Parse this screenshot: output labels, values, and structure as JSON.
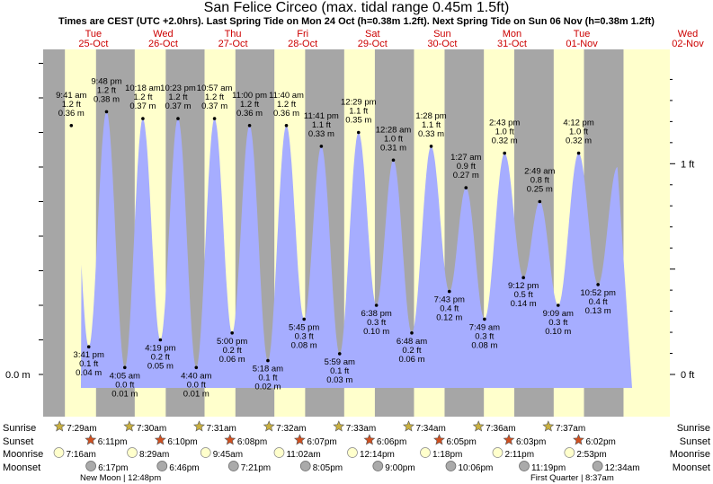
{
  "title": "San Felice Circeo (max. tidal range 0.45m 1.5ft)",
  "subtitle": "Times are CEST (UTC +2.0hrs). Last Spring Tide on Mon 24 Oct (h=0.38m 1.2ft). Next Spring Tide on Sun 06 Nov (h=0.38m 1.2ft)",
  "colors": {
    "night": "#a6a6a6",
    "day": "#ffffcc",
    "water": "#a6adff",
    "date_text": "#cc0000"
  },
  "chart_data": {
    "type": "area",
    "y_axis_left": {
      "unit": "m",
      "ticks": [
        {
          "value": 0.0,
          "label": "0.0 m"
        }
      ]
    },
    "y_axis_right": {
      "unit": "ft",
      "ticks": [
        {
          "value": 0,
          "label": "0 ft"
        },
        {
          "value": 1,
          "label": "1 ft"
        }
      ]
    },
    "days": [
      {
        "dow": "Tue",
        "date": "25-Oct"
      },
      {
        "dow": "Wed",
        "date": "26-Oct"
      },
      {
        "dow": "Thu",
        "date": "27-Oct"
      },
      {
        "dow": "Fri",
        "date": "28-Oct"
      },
      {
        "dow": "Sat",
        "date": "29-Oct"
      },
      {
        "dow": "Sun",
        "date": "30-Oct"
      },
      {
        "dow": "Mon",
        "date": "31-Oct"
      },
      {
        "dow": "Tue",
        "date": "01-Nov"
      },
      {
        "dow": "Wed",
        "date": "02-Nov"
      }
    ],
    "tides": [
      {
        "day": 0,
        "time": "9:41 am",
        "m": 0.36,
        "ft": "1.2 ft",
        "m_label": "0.36 m",
        "type": "high"
      },
      {
        "day": 0,
        "time": "3:41 pm",
        "m": 0.04,
        "ft": "0.1 ft",
        "m_label": "0.04 m",
        "type": "low"
      },
      {
        "day": 0,
        "time": "9:48 pm",
        "m": 0.38,
        "ft": "1.2 ft",
        "m_label": "0.38 m",
        "type": "high"
      },
      {
        "day": 1,
        "time": "4:05 am",
        "m": 0.01,
        "ft": "0.0 ft",
        "m_label": "0.01 m",
        "type": "low"
      },
      {
        "day": 1,
        "time": "10:18 am",
        "m": 0.37,
        "ft": "1.2 ft",
        "m_label": "0.37 m",
        "type": "high"
      },
      {
        "day": 1,
        "time": "4:19 pm",
        "m": 0.05,
        "ft": "0.2 ft",
        "m_label": "0.05 m",
        "type": "low"
      },
      {
        "day": 1,
        "time": "10:23 pm",
        "m": 0.37,
        "ft": "1.2 ft",
        "m_label": "0.37 m",
        "type": "high"
      },
      {
        "day": 2,
        "time": "4:40 am",
        "m": 0.01,
        "ft": "0.0 ft",
        "m_label": "0.01 m",
        "type": "low"
      },
      {
        "day": 2,
        "time": "10:57 am",
        "m": 0.37,
        "ft": "1.2 ft",
        "m_label": "0.37 m",
        "type": "high"
      },
      {
        "day": 2,
        "time": "5:00 pm",
        "m": 0.06,
        "ft": "0.2 ft",
        "m_label": "0.06 m",
        "type": "low"
      },
      {
        "day": 2,
        "time": "11:00 pm",
        "m": 0.36,
        "ft": "1.2 ft",
        "m_label": "0.36 m",
        "type": "high"
      },
      {
        "day": 3,
        "time": "5:18 am",
        "m": 0.02,
        "ft": "0.1 ft",
        "m_label": "0.02 m",
        "type": "low"
      },
      {
        "day": 3,
        "time": "11:40 am",
        "m": 0.36,
        "ft": "1.2 ft",
        "m_label": "0.36 m",
        "type": "high"
      },
      {
        "day": 3,
        "time": "5:45 pm",
        "m": 0.08,
        "ft": "0.3 ft",
        "m_label": "0.08 m",
        "type": "low"
      },
      {
        "day": 3,
        "time": "11:41 pm",
        "m": 0.33,
        "ft": "1.1 ft",
        "m_label": "0.33 m",
        "type": "high"
      },
      {
        "day": 4,
        "time": "5:59 am",
        "m": 0.03,
        "ft": "0.1 ft",
        "m_label": "0.03 m",
        "type": "low"
      },
      {
        "day": 4,
        "time": "12:29 pm",
        "m": 0.35,
        "ft": "1.1 ft",
        "m_label": "0.35 m",
        "type": "high"
      },
      {
        "day": 4,
        "time": "6:38 pm",
        "m": 0.1,
        "ft": "0.3 ft",
        "m_label": "0.10 m",
        "type": "low"
      },
      {
        "day": 5,
        "time": "12:28 am",
        "m": 0.31,
        "ft": "1.0 ft",
        "m_label": "0.31 m",
        "type": "high"
      },
      {
        "day": 5,
        "time": "6:48 am",
        "m": 0.06,
        "ft": "0.2 ft",
        "m_label": "0.06 m",
        "type": "low"
      },
      {
        "day": 5,
        "time": "1:28 pm",
        "m": 0.33,
        "ft": "1.1 ft",
        "m_label": "0.33 m",
        "type": "high"
      },
      {
        "day": 5,
        "time": "7:43 pm",
        "m": 0.12,
        "ft": "0.4 ft",
        "m_label": "0.12 m",
        "type": "low"
      },
      {
        "day": 6,
        "time": "1:27 am",
        "m": 0.27,
        "ft": "0.9 ft",
        "m_label": "0.27 m",
        "type": "high"
      },
      {
        "day": 6,
        "time": "7:49 am",
        "m": 0.08,
        "ft": "0.3 ft",
        "m_label": "0.08 m",
        "type": "low"
      },
      {
        "day": 6,
        "time": "2:43 pm",
        "m": 0.32,
        "ft": "1.0 ft",
        "m_label": "0.32 m",
        "type": "high"
      },
      {
        "day": 6,
        "time": "9:12 pm",
        "m": 0.14,
        "ft": "0.5 ft",
        "m_label": "0.14 m",
        "type": "low"
      },
      {
        "day": 7,
        "time": "2:49 am",
        "m": 0.25,
        "ft": "0.8 ft",
        "m_label": "0.25 m",
        "type": "high"
      },
      {
        "day": 7,
        "time": "9:09 am",
        "m": 0.1,
        "ft": "0.3 ft",
        "m_label": "0.10 m",
        "type": "low"
      },
      {
        "day": 7,
        "time": "4:12 pm",
        "m": 0.32,
        "ft": "1.0 ft",
        "m_label": "0.32 m",
        "type": "high"
      },
      {
        "day": 7,
        "time": "10:52 pm",
        "m": 0.13,
        "ft": "0.4 ft",
        "m_label": "0.13 m",
        "type": "low"
      }
    ],
    "daylight": [
      {
        "day": 0,
        "sunrise": "7:29am",
        "sunset": "6:11pm"
      },
      {
        "day": 1,
        "sunrise": "7:30am",
        "sunset": "6:10pm"
      },
      {
        "day": 2,
        "sunrise": "7:31am",
        "sunset": "6:08pm"
      },
      {
        "day": 3,
        "sunrise": "7:32am",
        "sunset": "6:07pm"
      },
      {
        "day": 4,
        "sunrise": "7:33am",
        "sunset": "6:06pm"
      },
      {
        "day": 5,
        "sunrise": "7:34am",
        "sunset": "6:05pm"
      },
      {
        "day": 6,
        "sunrise": "7:36am",
        "sunset": "6:03pm"
      },
      {
        "day": 7,
        "sunrise": "7:37am",
        "sunset": "6:02pm"
      }
    ],
    "moonrise": [
      {
        "day": 0,
        "time": "7:16am"
      },
      {
        "day": 1,
        "time": "8:29am"
      },
      {
        "day": 2,
        "time": "9:45am"
      },
      {
        "day": 3,
        "time": "11:02am"
      },
      {
        "day": 4,
        "time": "12:14pm"
      },
      {
        "day": 5,
        "time": "1:18pm"
      },
      {
        "day": 6,
        "time": "2:11pm"
      },
      {
        "day": 7,
        "time": "2:53pm"
      }
    ],
    "moonset": [
      {
        "day": 0,
        "time": "6:17pm"
      },
      {
        "day": 1,
        "time": "6:46pm"
      },
      {
        "day": 2,
        "time": "7:21pm"
      },
      {
        "day": 3,
        "time": "8:05pm"
      },
      {
        "day": 4,
        "time": "9:00pm"
      },
      {
        "day": 5,
        "time": "10:06pm"
      },
      {
        "day": 6,
        "time": "11:19pm"
      },
      {
        "day": 8,
        "time": "12:34am"
      }
    ],
    "row_labels": {
      "sunrise": "Sunrise",
      "sunset": "Sunset",
      "moonrise": "Moonrise",
      "moonset": "Moonset"
    },
    "moon_phases": [
      {
        "name": "New Moon",
        "time": "12:48pm",
        "day": 0
      },
      {
        "name": "First Quarter",
        "time": "8:37am",
        "day": 7
      }
    ]
  }
}
